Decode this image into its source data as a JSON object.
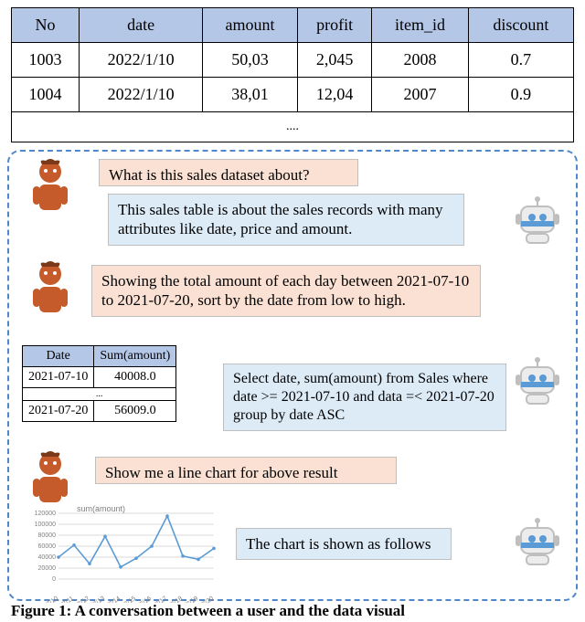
{
  "topTable": {
    "columns": [
      "No",
      "date",
      "amount",
      "profit",
      "item_id",
      "discount"
    ],
    "rows": [
      [
        "1003",
        "2022/1/10",
        "50,03",
        "2,045",
        "2008",
        "0.7"
      ],
      [
        "1004",
        "2022/1/10",
        "38,01",
        "12,04",
        "2007",
        "0.9"
      ]
    ],
    "ellipsis": "....",
    "header_bg": "#b5c7e7",
    "border_color": "#000000"
  },
  "dialog": {
    "border_color": "#4f88c9",
    "user_bubble_bg": "#fae1d3",
    "bot_bubble_bg": "#ddebf7",
    "user_color": "#c55a2b",
    "robot_colors": {
      "body": "#d9d9d9",
      "eye": "#5b9bd5",
      "band": "#5b9bd5"
    },
    "msg1": "What is this sales dataset about?",
    "msg2": "This sales table is about the sales records with many attributes like date, price and amount.",
    "msg3": "Showing the total amount of each day between 2021-07-10 to 2021-07-20, sort by the date from low to high.",
    "msg4": "Select date, sum(amount) from Sales where date >= 2021-07-10 and data =< 2021-07-20 group by date ASC",
    "msg5": "Show me a line chart for above result",
    "msg6": "The chart is shown as follows"
  },
  "miniTable": {
    "columns": [
      "Date",
      "Sum(amount)"
    ],
    "rows_top": [
      [
        "2021-07-10",
        "40008.0"
      ]
    ],
    "ellipsis": "...",
    "rows_bottom": [
      [
        "2021-07-20",
        "56009.0"
      ]
    ],
    "header_bg": "#b5c7e7"
  },
  "chart": {
    "type": "line",
    "title": "sum(amount)",
    "title_fontsize": 9,
    "title_color": "#808080",
    "x_labels": [
      "2021/7/10",
      "2021/7/11",
      "2021/7/12",
      "2021/7/13",
      "2021/7/14",
      "2021/7/15",
      "2021/7/16",
      "2021/7/17",
      "2021/7/18",
      "2021/7/19",
      "2021/7/20"
    ],
    "y_ticks": [
      0,
      20000,
      40000,
      60000,
      80000,
      100000,
      120000
    ],
    "ylim": [
      0,
      120000
    ],
    "values": [
      40008,
      62000,
      28000,
      78000,
      22000,
      38000,
      60000,
      115000,
      42000,
      36000,
      56009
    ],
    "line_color": "#5b9bd5",
    "grid_color": "#d9d9d9",
    "axis_label_color": "#808080",
    "axis_label_fontsize": 7,
    "background_color": "#ffffff"
  },
  "caption": "Figure 1: A conversation between a user and the data visual"
}
